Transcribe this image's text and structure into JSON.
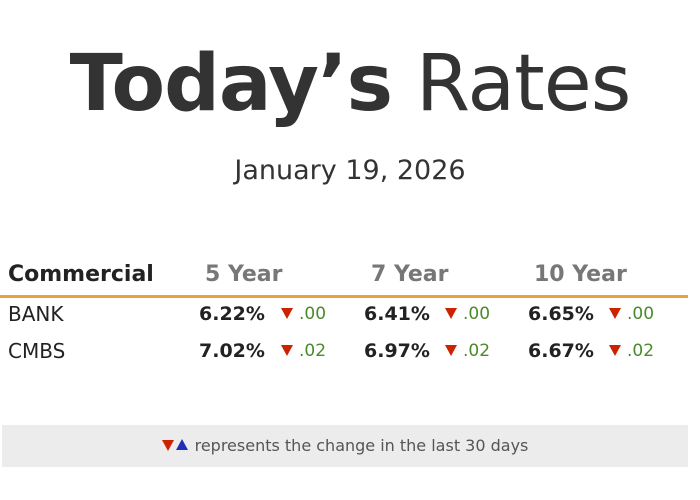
{
  "title": {
    "bold": "Today’s",
    "light": "Rates"
  },
  "date": "January 19, 2026",
  "table": {
    "columns": [
      "Commercial",
      "5 Year",
      "7 Year",
      "10 Year"
    ],
    "rows": [
      {
        "label": "BANK",
        "cells": [
          {
            "rate": "6.22%",
            "change": ".00",
            "direction": "down"
          },
          {
            "rate": "6.41%",
            "change": ".00",
            "direction": "down"
          },
          {
            "rate": "6.65%",
            "change": ".00",
            "direction": "down"
          }
        ]
      },
      {
        "label": "CMBS",
        "cells": [
          {
            "rate": "7.02%",
            "change": ".02",
            "direction": "down"
          },
          {
            "rate": "6.97%",
            "change": ".02",
            "direction": "down"
          },
          {
            "rate": "6.67%",
            "change": ".02",
            "direction": "down"
          }
        ]
      }
    ]
  },
  "legend": {
    "text": "represents the change in the last 30 days"
  },
  "colors": {
    "accent_rule": "#e8a33c",
    "down_arrow": "#cc2200",
    "up_arrow": "#1f2fb8",
    "change_text": "#4a8a2a"
  },
  "icons": {
    "down": "triangle-down-icon",
    "up": "triangle-up-icon"
  }
}
